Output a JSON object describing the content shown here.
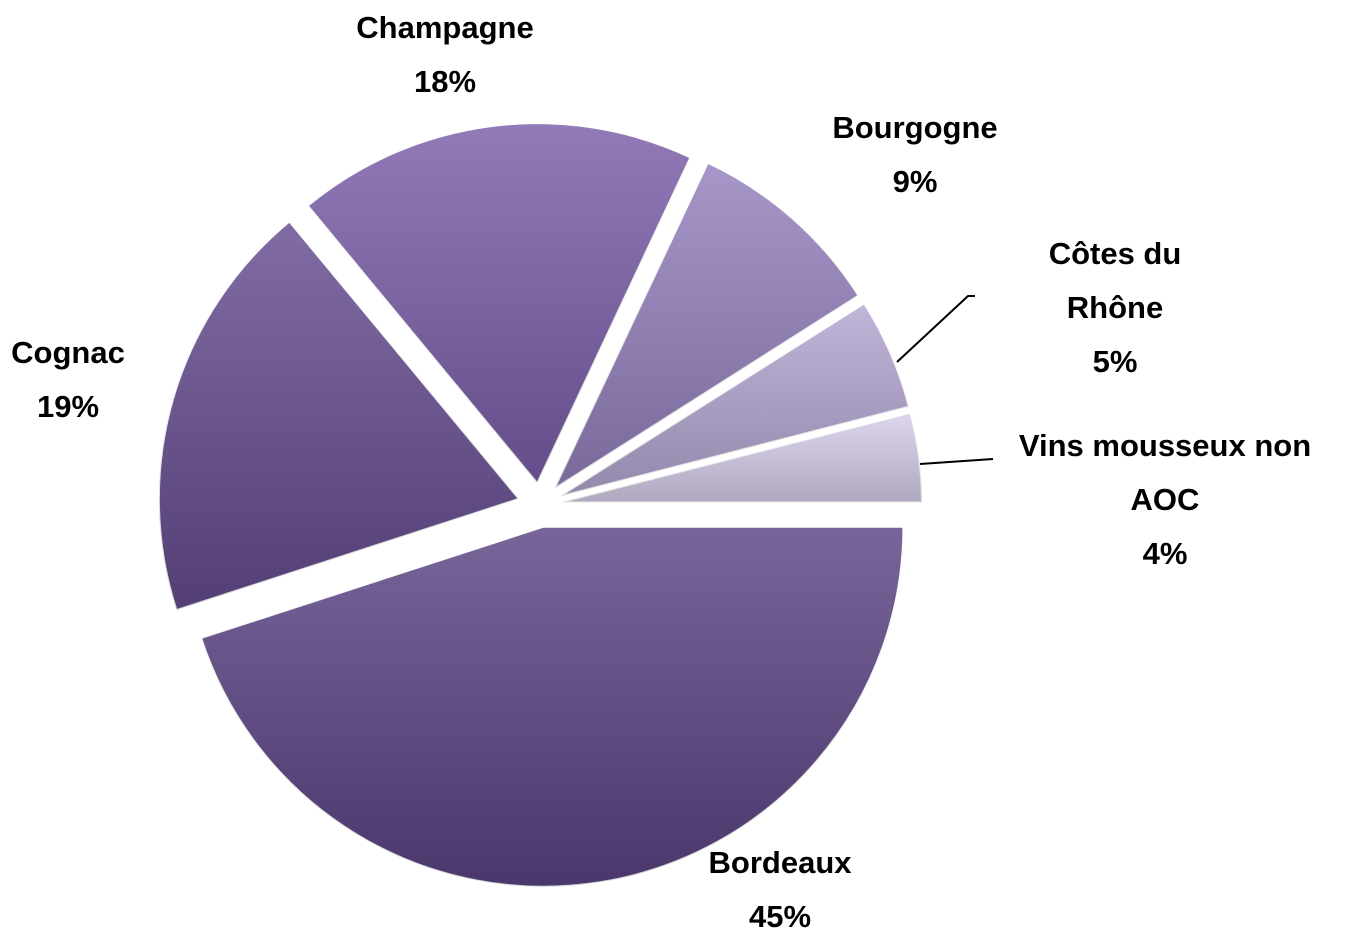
{
  "chart_data": {
    "type": "pie",
    "categories": [
      "Bordeaux",
      "Cognac",
      "Champagne",
      "Bourgogne",
      "Côtes du Rhône",
      "Vins mousseux non AOC"
    ],
    "values": [
      45,
      19,
      18,
      9,
      5,
      4
    ],
    "value_labels": [
      "45%",
      "19%",
      "18%",
      "9%",
      "5%",
      "4%"
    ],
    "colors": [
      "#5a4383",
      "#654b8f",
      "#7a5da8",
      "#9480bd",
      "#b3a5d1",
      "#d6cde8"
    ]
  }
}
